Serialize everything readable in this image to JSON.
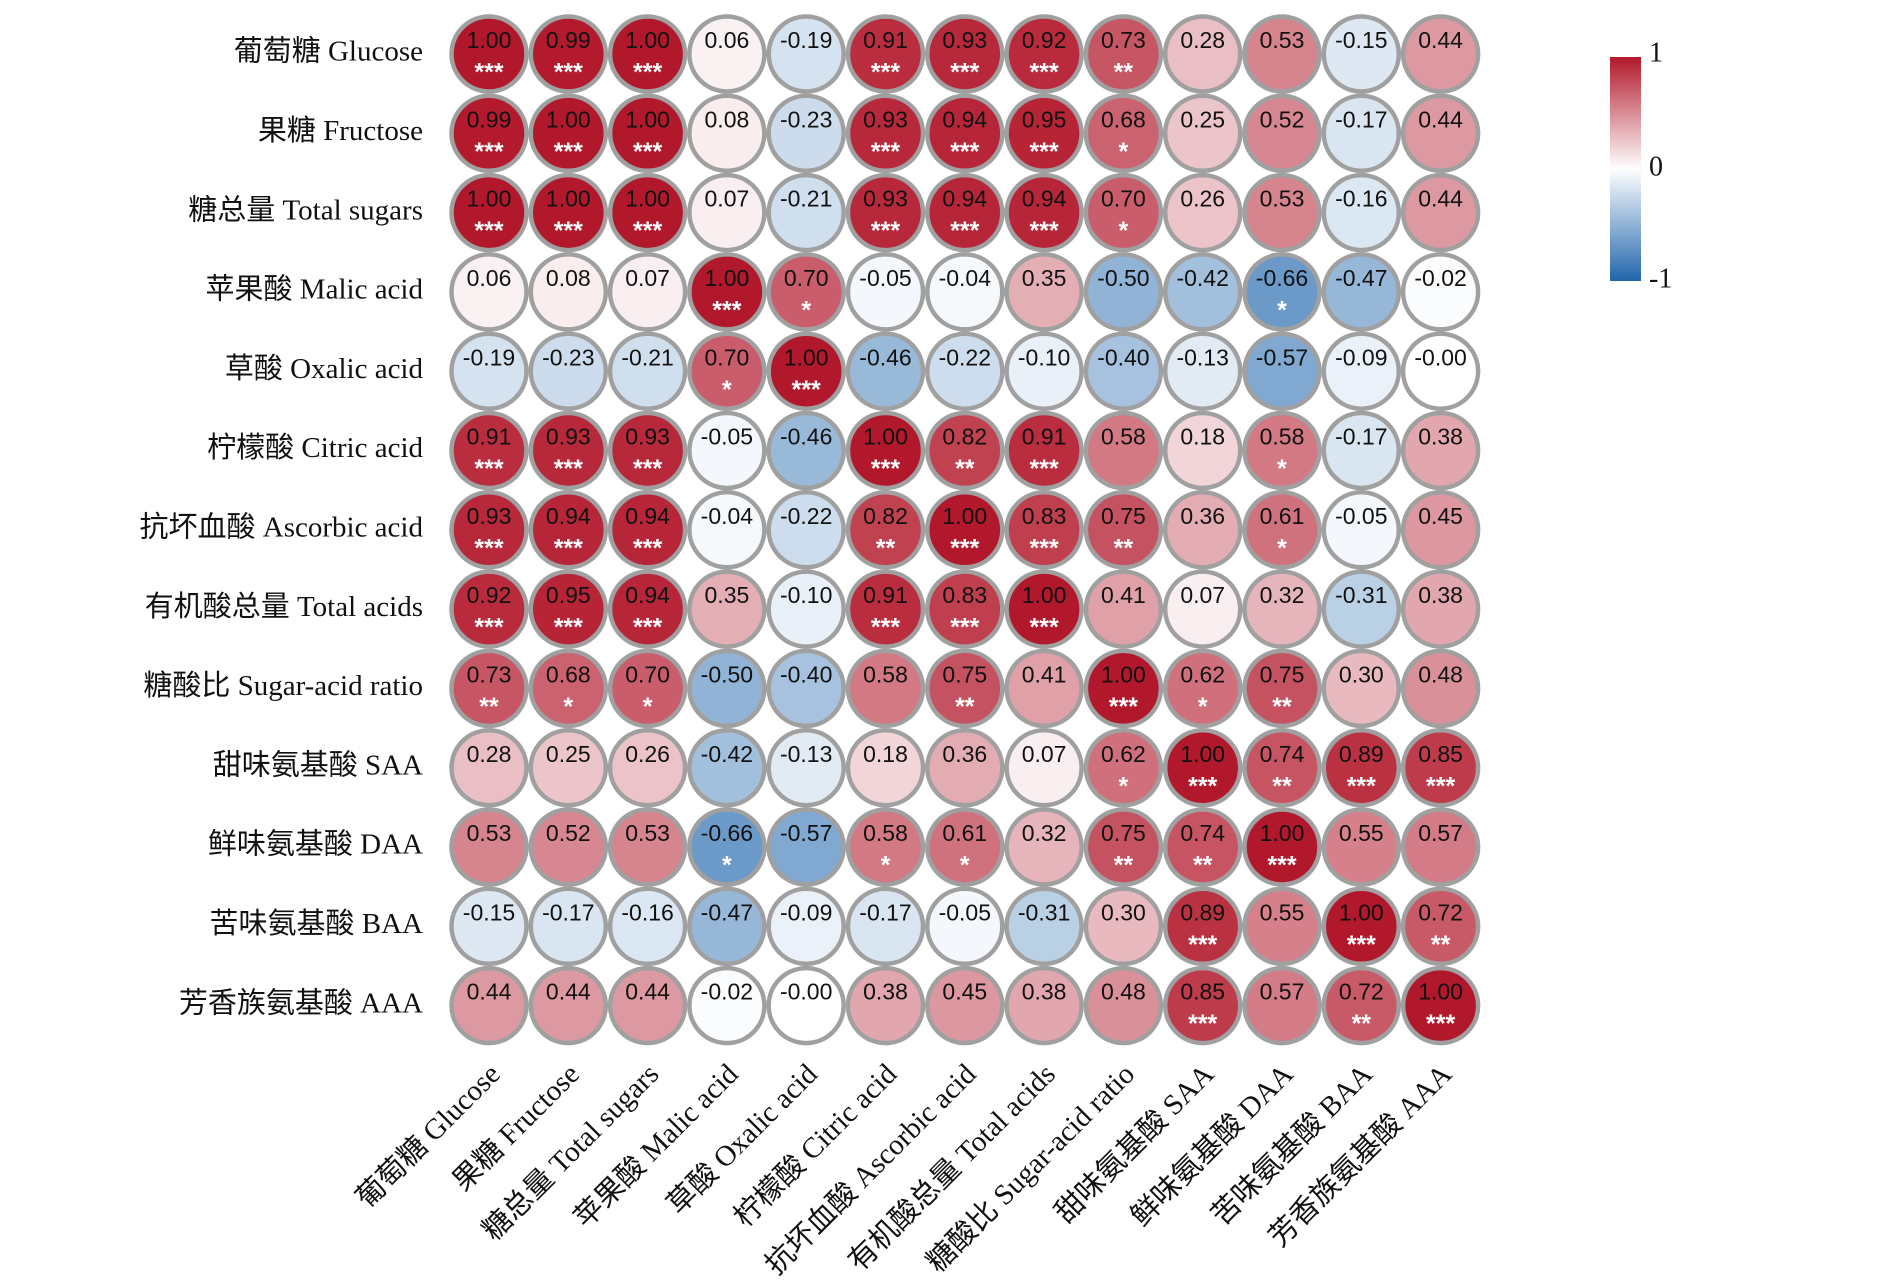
{
  "chart_data": {
    "type": "heatmap",
    "shape": "circle",
    "variables": [
      "葡萄糖 Glucose",
      "果糖 Fructose",
      "糖总量 Total sugars",
      "苹果酸 Malic acid",
      "草酸 Oxalic acid",
      "柠檬酸 Citric acid",
      "抗坏血酸 Ascorbic acid",
      "有机酸总量 Total acids",
      "糖酸比 Sugar-acid ratio",
      "甜味氨基酸 SAA",
      "鲜味氨基酸 DAA",
      "苦味氨基酸 BAA",
      "芳香族氨基酸 AAA"
    ],
    "value_labels": [
      [
        "1.00",
        "0.99",
        "1.00",
        "0.06",
        "-0.19",
        "0.91",
        "0.93",
        "0.92",
        "0.73",
        "0.28",
        "0.53",
        "-0.15",
        "0.44"
      ],
      [
        "0.99",
        "1.00",
        "1.00",
        "0.08",
        "-0.23",
        "0.93",
        "0.94",
        "0.95",
        "0.68",
        "0.25",
        "0.52",
        "-0.17",
        "0.44"
      ],
      [
        "1.00",
        "1.00",
        "1.00",
        "0.07",
        "-0.21",
        "0.93",
        "0.94",
        "0.94",
        "0.70",
        "0.26",
        "0.53",
        "-0.16",
        "0.44"
      ],
      [
        "0.06",
        "0.08",
        "0.07",
        "1.00",
        "0.70",
        "-0.05",
        "-0.04",
        "0.35",
        "-0.50",
        "-0.42",
        "-0.66",
        "-0.47",
        "-0.02"
      ],
      [
        "-0.19",
        "-0.23",
        "-0.21",
        "0.70",
        "1.00",
        "-0.46",
        "-0.22",
        "-0.10",
        "-0.40",
        "-0.13",
        "-0.57",
        "-0.09",
        "-0.00"
      ],
      [
        "0.91",
        "0.93",
        "0.93",
        "-0.05",
        "-0.46",
        "1.00",
        "0.82",
        "0.91",
        "0.58",
        "0.18",
        "0.58",
        "-0.17",
        "0.38"
      ],
      [
        "0.93",
        "0.94",
        "0.94",
        "-0.04",
        "-0.22",
        "0.82",
        "1.00",
        "0.83",
        "0.75",
        "0.36",
        "0.61",
        "-0.05",
        "0.45"
      ],
      [
        "0.92",
        "0.95",
        "0.94",
        "0.35",
        "-0.10",
        "0.91",
        "0.83",
        "1.00",
        "0.41",
        "0.07",
        "0.32",
        "-0.31",
        "0.38"
      ],
      [
        "0.73",
        "0.68",
        "0.70",
        "-0.50",
        "-0.40",
        "0.58",
        "0.75",
        "0.41",
        "1.00",
        "0.62",
        "0.75",
        "0.30",
        "0.48"
      ],
      [
        "0.28",
        "0.25",
        "0.26",
        "-0.42",
        "-0.13",
        "0.18",
        "0.36",
        "0.07",
        "0.62",
        "1.00",
        "0.74",
        "0.89",
        "0.85"
      ],
      [
        "0.53",
        "0.52",
        "0.53",
        "-0.66",
        "-0.57",
        "0.58",
        "0.61",
        "0.32",
        "0.75",
        "0.74",
        "1.00",
        "0.55",
        "0.57"
      ],
      [
        "-0.15",
        "-0.17",
        "-0.16",
        "-0.47",
        "-0.09",
        "-0.17",
        "-0.05",
        "-0.31",
        "0.30",
        "0.89",
        "0.55",
        "1.00",
        "0.72"
      ],
      [
        "0.44",
        "0.44",
        "0.44",
        "-0.02",
        "-0.00",
        "0.38",
        "0.45",
        "0.38",
        "0.48",
        "0.85",
        "0.57",
        "0.72",
        "1.00"
      ]
    ],
    "significance": [
      [
        "***",
        "***",
        "***",
        "",
        "",
        "***",
        "***",
        "***",
        "**",
        "",
        "",
        "",
        ""
      ],
      [
        "***",
        "***",
        "***",
        "",
        "",
        "***",
        "***",
        "***",
        "*",
        "",
        "",
        "",
        ""
      ],
      [
        "***",
        "***",
        "***",
        "",
        "",
        "***",
        "***",
        "***",
        "*",
        "",
        "",
        "",
        ""
      ],
      [
        "",
        "",
        "",
        "***",
        "*",
        "",
        "",
        "",
        "",
        "",
        "*",
        "",
        ""
      ],
      [
        "",
        "",
        "",
        "*",
        "***",
        "",
        "",
        "",
        "",
        "",
        "",
        "",
        ""
      ],
      [
        "***",
        "***",
        "***",
        "",
        "",
        "***",
        "**",
        "***",
        "",
        "",
        "*",
        "",
        ""
      ],
      [
        "***",
        "***",
        "***",
        "",
        "",
        "**",
        "***",
        "***",
        "**",
        "",
        "*",
        "",
        ""
      ],
      [
        "***",
        "***",
        "***",
        "",
        "",
        "***",
        "***",
        "***",
        "",
        "",
        "",
        "",
        ""
      ],
      [
        "**",
        "*",
        "*",
        "",
        "",
        "",
        "**",
        "",
        "***",
        "*",
        "**",
        "",
        ""
      ],
      [
        "",
        "",
        "",
        "",
        "",
        "",
        "",
        "",
        "*",
        "***",
        "**",
        "***",
        "***"
      ],
      [
        "",
        "",
        "",
        "*",
        "",
        "*",
        "*",
        "",
        "**",
        "**",
        "***",
        "",
        ""
      ],
      [
        "",
        "",
        "",
        "",
        "",
        "",
        "",
        "",
        "",
        "***",
        "",
        "***",
        "**"
      ],
      [
        "",
        "",
        "",
        "",
        "",
        "",
        "",
        "",
        "",
        "***",
        "",
        "**",
        "***"
      ]
    ],
    "colorbar": {
      "min": -1,
      "max": 1,
      "tick_labels": [
        "1",
        "0",
        "-1"
      ],
      "colors": {
        "negative": "#2166AC",
        "zero": "#FFFFFF",
        "positive": "#B2182B"
      }
    },
    "circle_border_color": "#A0A0A0"
  }
}
